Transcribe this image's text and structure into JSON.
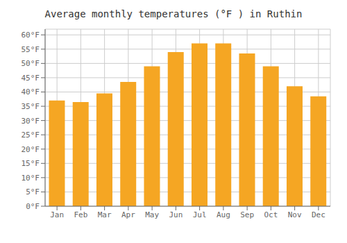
{
  "chart_data": {
    "type": "bar",
    "title": "Average monthly temperatures (°F ) in Ruthin",
    "categories": [
      "Jan",
      "Feb",
      "Mar",
      "Apr",
      "May",
      "Jun",
      "Jul",
      "Aug",
      "Sep",
      "Oct",
      "Nov",
      "Dec"
    ],
    "values": [
      37.0,
      36.5,
      39.5,
      43.5,
      49.0,
      54.0,
      57.0,
      57.0,
      53.5,
      49.0,
      42.0,
      38.5
    ],
    "color": "#F5A623",
    "ylim": [
      0,
      62
    ],
    "yticks": [
      {
        "value": 0,
        "label": "0°F"
      },
      {
        "value": 5,
        "label": "5°F"
      },
      {
        "value": 10,
        "label": "10°F"
      },
      {
        "value": 15,
        "label": "15°F"
      },
      {
        "value": 20,
        "label": "20°F"
      },
      {
        "value": 25,
        "label": "25°F"
      },
      {
        "value": 30,
        "label": "30°F"
      },
      {
        "value": 35,
        "label": "35°F"
      },
      {
        "value": 40,
        "label": "40°F"
      },
      {
        "value": 45,
        "label": "45°F"
      },
      {
        "value": 50,
        "label": "50°F"
      },
      {
        "value": 55,
        "label": "55°F"
      },
      {
        "value": 60,
        "label": "60°F"
      }
    ],
    "grid": true
  }
}
